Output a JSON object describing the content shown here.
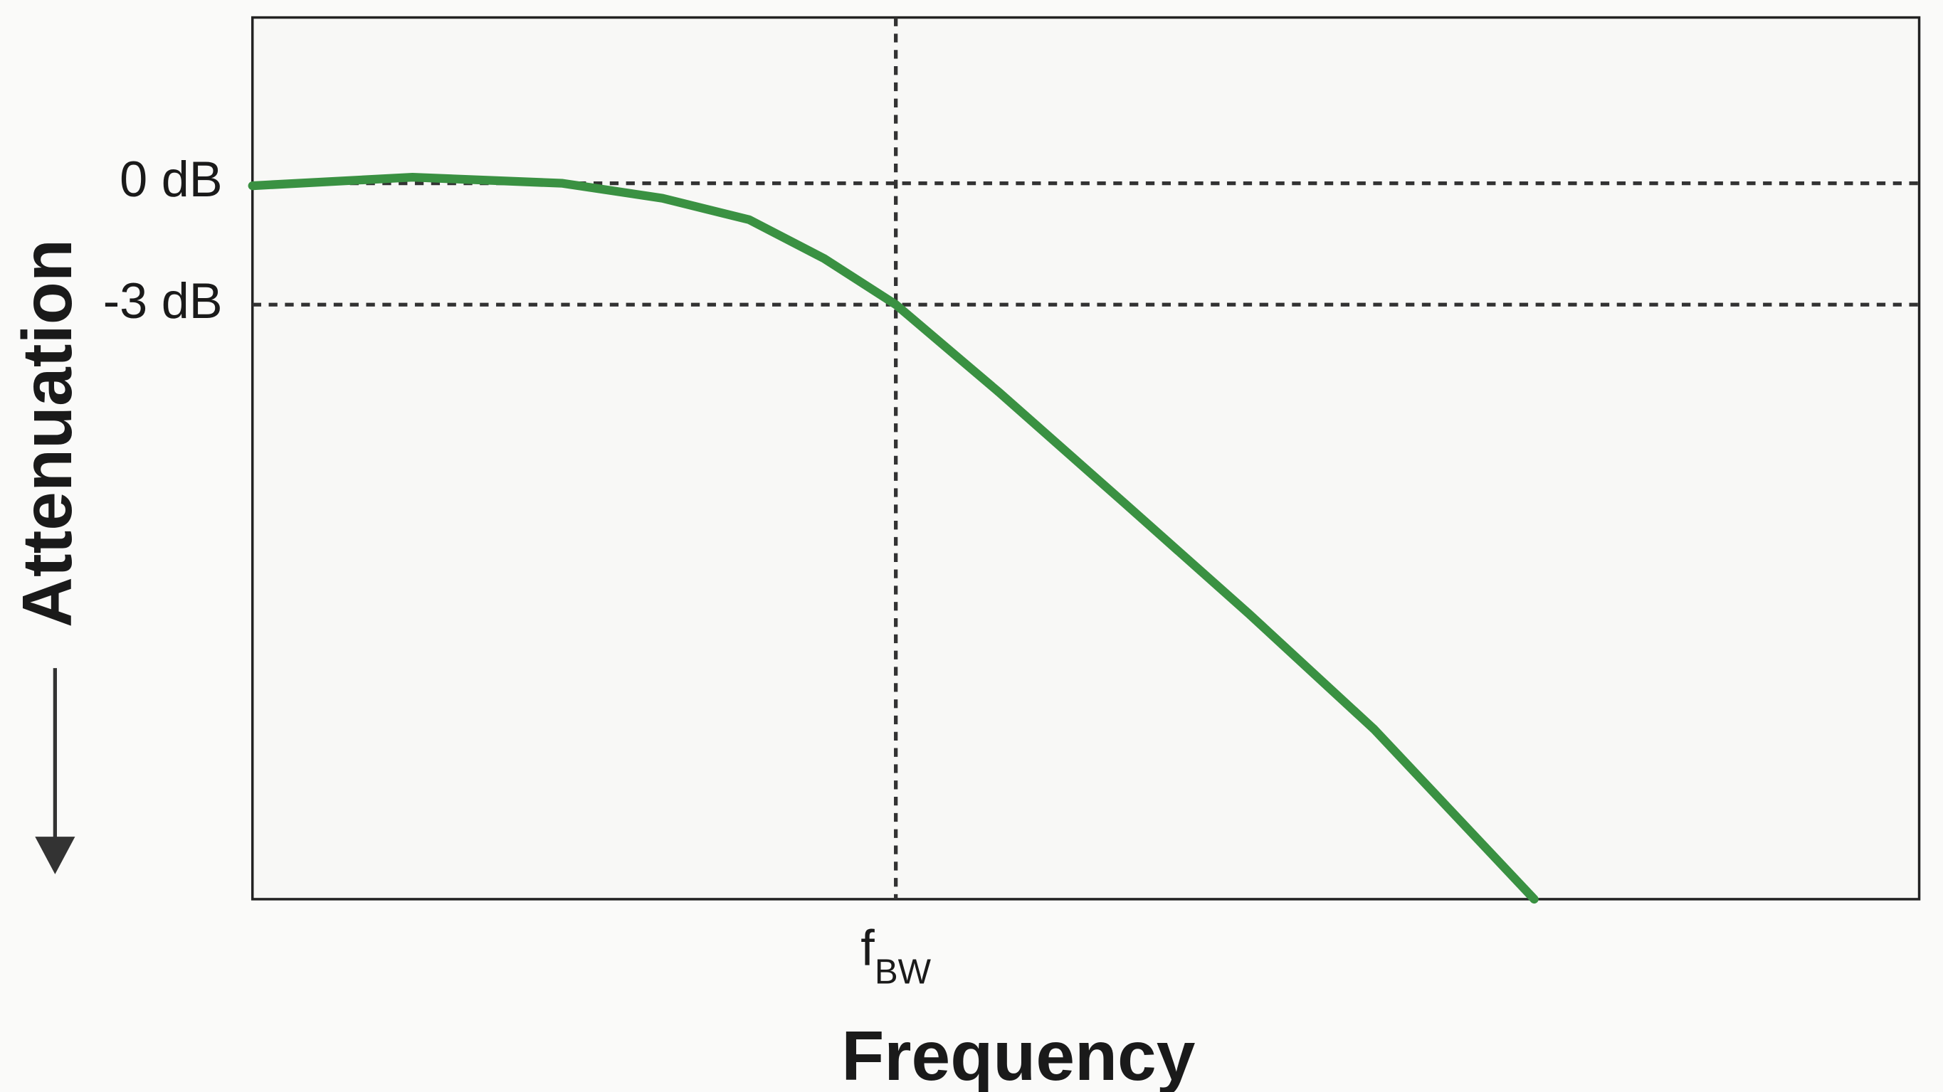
{
  "chart_data": {
    "type": "line",
    "y_label": "Attenuation",
    "x_label": "Frequency",
    "x": [
      0,
      0.096,
      0.186,
      0.246,
      0.298,
      0.343,
      0.386,
      0.448,
      0.523,
      0.598,
      0.673,
      0.769
    ],
    "values": [
      -0.06,
      0.15,
      0,
      -0.37,
      -0.9,
      -1.86,
      -3,
      -5.17,
      -7.9,
      -10.65,
      -13.5,
      -17.7
    ],
    "color": "#3a9142",
    "xlim": [
      0,
      1
    ],
    "ylim": [
      -17.7,
      4.1
    ],
    "yticks": [
      {
        "value": 0,
        "label": "0 dB"
      },
      {
        "value": -3,
        "label": "-3 dB"
      }
    ],
    "xticks": [
      {
        "value": 0.386,
        "label": "f",
        "subscript": "BW"
      }
    ],
    "grid": true
  }
}
